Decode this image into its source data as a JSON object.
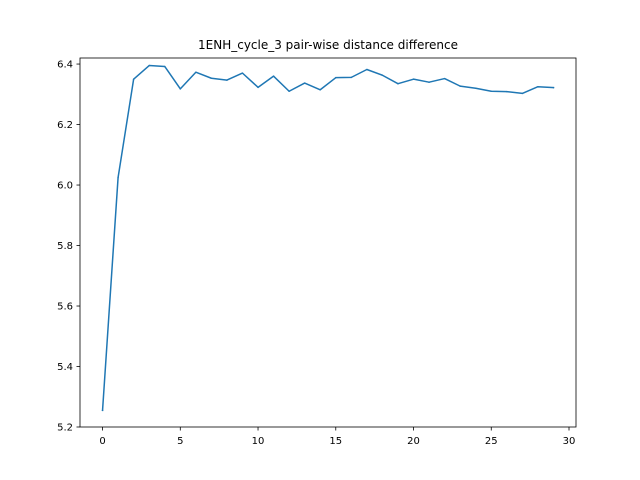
{
  "chart_data": {
    "type": "line",
    "title": "1ENH_cycle_3 pair-wise distance difference",
    "xlabel": "",
    "ylabel": "",
    "xlim": [
      -1.45,
      30.45
    ],
    "ylim": [
      5.2,
      6.42
    ],
    "x_ticks": [
      0,
      5,
      10,
      15,
      20,
      25,
      30
    ],
    "y_ticks": [
      5.2,
      5.4,
      5.6,
      5.8,
      6.0,
      6.2,
      6.4
    ],
    "x_tick_labels": [
      "0",
      "5",
      "10",
      "15",
      "20",
      "25",
      "30"
    ],
    "y_tick_labels": [
      "5.2",
      "5.4",
      "5.6",
      "5.8",
      "6.0",
      "6.2",
      "6.4"
    ],
    "grid": false,
    "legend": "none",
    "series": [
      {
        "color": "#1f77b4",
        "x": [
          0,
          1,
          2,
          3,
          4,
          5,
          6,
          7,
          8,
          9,
          10,
          11,
          12,
          13,
          14,
          15,
          16,
          17,
          18,
          19,
          20,
          21,
          22,
          23,
          24,
          25,
          26,
          27,
          28,
          29
        ],
        "values": [
          5.255,
          6.025,
          6.35,
          6.395,
          6.392,
          6.318,
          6.373,
          6.353,
          6.347,
          6.37,
          6.323,
          6.36,
          6.31,
          6.337,
          6.315,
          6.355,
          6.356,
          6.382,
          6.363,
          6.335,
          6.35,
          6.34,
          6.352,
          6.327,
          6.32,
          6.31,
          6.309,
          6.303,
          6.325,
          6.322
        ]
      }
    ]
  }
}
